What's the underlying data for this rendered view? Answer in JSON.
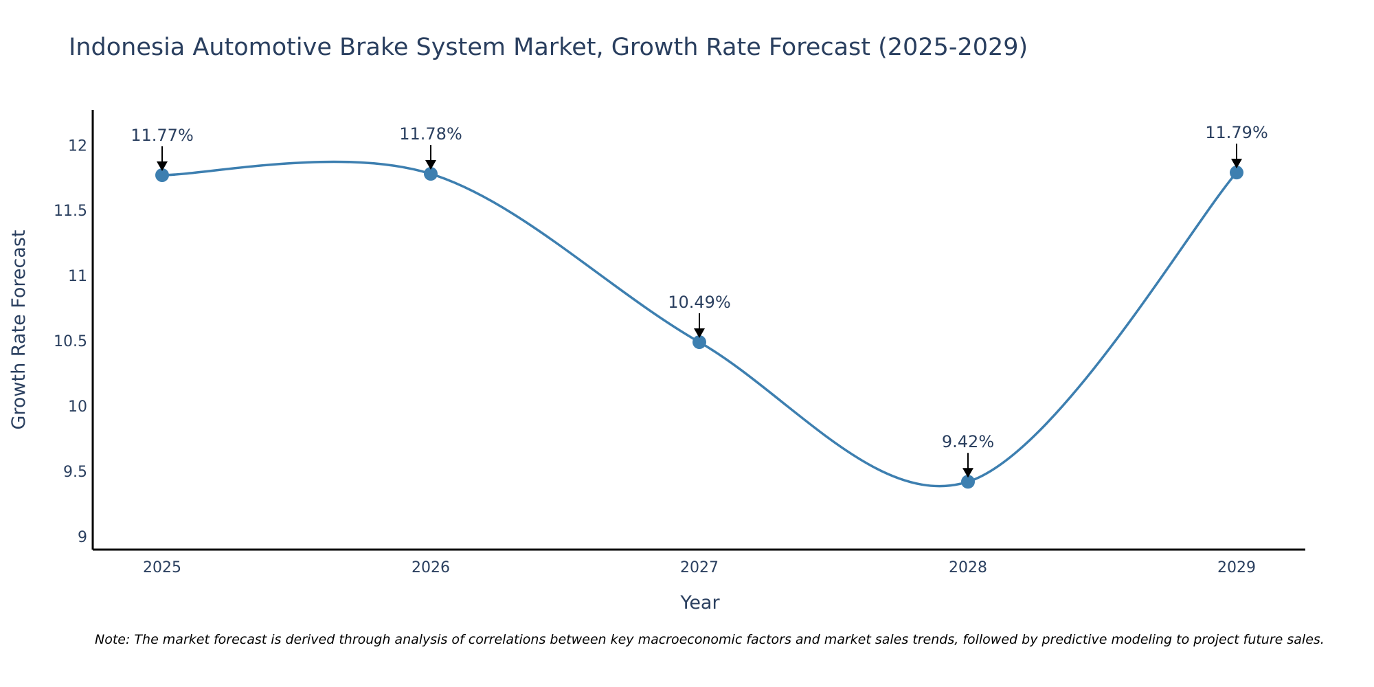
{
  "chart_data": {
    "type": "line",
    "title": "Indonesia Automotive Brake System Market, Growth Rate Forecast (2025-2029)",
    "xlabel": "Year",
    "ylabel": "Growth Rate Forecast",
    "categories": [
      "2025",
      "2026",
      "2027",
      "2028",
      "2029"
    ],
    "values": [
      11.77,
      11.78,
      10.49,
      9.42,
      11.79
    ],
    "data_labels": [
      "11.77%",
      "11.78%",
      "10.49%",
      "9.42%",
      "11.79%"
    ],
    "yticks": [
      9,
      9.5,
      10,
      10.5,
      11,
      11.5,
      12
    ],
    "ytick_labels": [
      "9",
      "9.5",
      "10",
      "10.5",
      "11",
      "11.5",
      "12"
    ],
    "ylim": [
      8.9,
      12.27
    ],
    "grid": false,
    "line_shape": "spline",
    "colors": {
      "line": "#3d7fb0",
      "marker": "#3d7fb0",
      "arrow": "#000000",
      "axis": "#000000"
    }
  },
  "note": "Note: The market forecast is derived through analysis of correlations between key macroeconomic factors and market sales trends, followed by predictive modeling to project future sales."
}
